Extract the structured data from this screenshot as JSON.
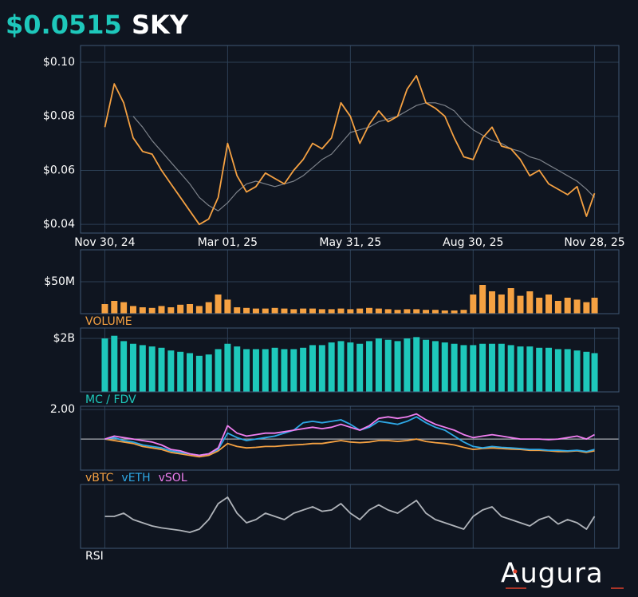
{
  "header": {
    "price": "$0.0515",
    "symbol": "SKY"
  },
  "logo": "Augura",
  "chart_data": [
    {
      "type": "line",
      "x": [
        "2024-11-30",
        "2024-12-07",
        "2024-12-14",
        "2024-12-21",
        "2024-12-28",
        "2025-01-04",
        "2025-01-11",
        "2025-01-18",
        "2025-01-25",
        "2025-02-01",
        "2025-02-08",
        "2025-02-15",
        "2025-02-22",
        "2025-03-01",
        "2025-03-08",
        "2025-03-15",
        "2025-03-22",
        "2025-03-29",
        "2025-04-05",
        "2025-04-12",
        "2025-04-19",
        "2025-04-26",
        "2025-05-03",
        "2025-05-10",
        "2025-05-17",
        "2025-05-24",
        "2025-05-31",
        "2025-06-07",
        "2025-06-14",
        "2025-06-21",
        "2025-06-28",
        "2025-07-05",
        "2025-07-12",
        "2025-07-19",
        "2025-07-26",
        "2025-08-02",
        "2025-08-09",
        "2025-08-16",
        "2025-08-23",
        "2025-08-30",
        "2025-09-06",
        "2025-09-13",
        "2025-09-20",
        "2025-09-27",
        "2025-10-04",
        "2025-10-11",
        "2025-10-18",
        "2025-10-25",
        "2025-11-01",
        "2025-11-08",
        "2025-11-15",
        "2025-11-22",
        "2025-11-28"
      ],
      "xlim": [
        "2024-11-12",
        "2025-12-16"
      ],
      "xticks": [
        {
          "value": "2024-11-30",
          "label": "Nov 30, 24"
        },
        {
          "value": "2025-03-01",
          "label": "Mar 01, 25"
        },
        {
          "value": "2025-05-31",
          "label": "May 31, 25"
        },
        {
          "value": "2025-08-30",
          "label": "Aug 30, 25"
        },
        {
          "value": "2025-11-28",
          "label": "Nov 28, 25"
        }
      ],
      "ylim": [
        0.0368,
        0.1062
      ],
      "yticks": [
        {
          "value": 0.04,
          "label": "$0.04"
        },
        {
          "value": 0.06,
          "label": "$0.06"
        },
        {
          "value": 0.08,
          "label": "$0.08"
        },
        {
          "value": 0.1,
          "label": "$0.10"
        }
      ],
      "grid": true,
      "series": [
        {
          "color": "#7d828a",
          "values": [
            null,
            null,
            null,
            0.08,
            0.076,
            0.071,
            0.067,
            0.063,
            0.059,
            0.055,
            0.05,
            0.047,
            0.045,
            0.048,
            0.052,
            0.055,
            0.056,
            0.055,
            0.054,
            0.055,
            0.056,
            0.058,
            0.061,
            0.064,
            0.066,
            0.07,
            0.074,
            0.075,
            0.076,
            0.078,
            0.079,
            0.08,
            0.082,
            0.084,
            0.085,
            0.085,
            0.084,
            0.082,
            0.078,
            0.075,
            0.073,
            0.071,
            0.07,
            0.068,
            0.067,
            0.065,
            0.064,
            0.062,
            0.06,
            0.058,
            0.056,
            0.053,
            0.05
          ]
        },
        {
          "color": "#f5a142",
          "values": [
            0.076,
            0.092,
            0.085,
            0.072,
            0.067,
            0.066,
            0.06,
            0.055,
            0.05,
            0.045,
            0.04,
            0.042,
            0.05,
            0.07,
            0.058,
            0.052,
            0.054,
            0.059,
            0.057,
            0.055,
            0.06,
            0.064,
            0.07,
            0.068,
            0.072,
            0.085,
            0.08,
            0.07,
            0.077,
            0.082,
            0.078,
            0.08,
            0.09,
            0.095,
            0.085,
            0.083,
            0.08,
            0.072,
            0.065,
            0.064,
            0.072,
            0.076,
            0.069,
            0.068,
            0.064,
            0.058,
            0.06,
            0.055,
            0.053,
            0.051,
            0.054,
            0.043,
            0.0515
          ]
        }
      ]
    },
    {
      "type": "bar",
      "title": "VOLUME",
      "color": "#f5a142",
      "x": [
        "2024-11-30",
        "2024-12-07",
        "2024-12-14",
        "2024-12-21",
        "2024-12-28",
        "2025-01-04",
        "2025-01-11",
        "2025-01-18",
        "2025-01-25",
        "2025-02-01",
        "2025-02-08",
        "2025-02-15",
        "2025-02-22",
        "2025-03-01",
        "2025-03-08",
        "2025-03-15",
        "2025-03-22",
        "2025-03-29",
        "2025-04-05",
        "2025-04-12",
        "2025-04-19",
        "2025-04-26",
        "2025-05-03",
        "2025-05-10",
        "2025-05-17",
        "2025-05-24",
        "2025-05-31",
        "2025-06-07",
        "2025-06-14",
        "2025-06-21",
        "2025-06-28",
        "2025-07-05",
        "2025-07-12",
        "2025-07-19",
        "2025-07-26",
        "2025-08-02",
        "2025-08-09",
        "2025-08-16",
        "2025-08-23",
        "2025-08-30",
        "2025-09-06",
        "2025-09-13",
        "2025-09-20",
        "2025-09-27",
        "2025-10-04",
        "2025-10-11",
        "2025-10-18",
        "2025-10-25",
        "2025-11-01",
        "2025-11-08",
        "2025-11-15",
        "2025-11-22",
        "2025-11-28"
      ],
      "xlim": [
        "2024-11-12",
        "2025-12-16"
      ],
      "ylim": [
        0,
        100000000
      ],
      "yticks": [
        {
          "value": 50000000,
          "label": "$50M"
        }
      ],
      "values": [
        15000000,
        20000000,
        18000000,
        12000000,
        10000000,
        9000000,
        12000000,
        10000000,
        14000000,
        15000000,
        12000000,
        18000000,
        30000000,
        22000000,
        10000000,
        9000000,
        8000000,
        8000000,
        9000000,
        8000000,
        7000000,
        8000000,
        8000000,
        7000000,
        7000000,
        8000000,
        7000000,
        8000000,
        9000000,
        8000000,
        7000000,
        6000000,
        7000000,
        7000000,
        6000000,
        6000000,
        5000000,
        5000000,
        6000000,
        30000000,
        45000000,
        35000000,
        30000000,
        40000000,
        28000000,
        35000000,
        25000000,
        30000000,
        20000000,
        25000000,
        22000000,
        18000000,
        25000000
      ]
    },
    {
      "type": "bar",
      "title": "MC / FDV",
      "color": "#1ec8bb",
      "x": [
        "2024-11-30",
        "2024-12-07",
        "2024-12-14",
        "2024-12-21",
        "2024-12-28",
        "2025-01-04",
        "2025-01-11",
        "2025-01-18",
        "2025-01-25",
        "2025-02-01",
        "2025-02-08",
        "2025-02-15",
        "2025-02-22",
        "2025-03-01",
        "2025-03-08",
        "2025-03-15",
        "2025-03-22",
        "2025-03-29",
        "2025-04-05",
        "2025-04-12",
        "2025-04-19",
        "2025-04-26",
        "2025-05-03",
        "2025-05-10",
        "2025-05-17",
        "2025-05-24",
        "2025-05-31",
        "2025-06-07",
        "2025-06-14",
        "2025-06-21",
        "2025-06-28",
        "2025-07-05",
        "2025-07-12",
        "2025-07-19",
        "2025-07-26",
        "2025-08-02",
        "2025-08-09",
        "2025-08-16",
        "2025-08-23",
        "2025-08-30",
        "2025-09-06",
        "2025-09-13",
        "2025-09-20",
        "2025-09-27",
        "2025-10-04",
        "2025-10-11",
        "2025-10-18",
        "2025-10-25",
        "2025-11-01",
        "2025-11-08",
        "2025-11-15",
        "2025-11-22",
        "2025-11-28"
      ],
      "xlim": [
        "2024-11-12",
        "2025-12-16"
      ],
      "ylim": [
        0,
        2390000000
      ],
      "yticks": [
        {
          "value": 2000000000,
          "label": "$2B"
        }
      ],
      "values": [
        2000000000,
        2100000000,
        1900000000,
        1800000000,
        1750000000,
        1700000000,
        1650000000,
        1550000000,
        1500000000,
        1450000000,
        1350000000,
        1400000000,
        1600000000,
        1800000000,
        1700000000,
        1600000000,
        1600000000,
        1600000000,
        1650000000,
        1600000000,
        1600000000,
        1650000000,
        1750000000,
        1750000000,
        1850000000,
        1900000000,
        1850000000,
        1800000000,
        1900000000,
        2000000000,
        1950000000,
        1900000000,
        2000000000,
        2050000000,
        1950000000,
        1900000000,
        1850000000,
        1800000000,
        1750000000,
        1750000000,
        1800000000,
        1800000000,
        1800000000,
        1750000000,
        1700000000,
        1700000000,
        1650000000,
        1650000000,
        1600000000,
        1600000000,
        1550000000,
        1500000000,
        1450000000
      ]
    },
    {
      "type": "line",
      "x": [
        "2024-11-30",
        "2024-12-07",
        "2024-12-14",
        "2024-12-21",
        "2024-12-28",
        "2025-01-04",
        "2025-01-11",
        "2025-01-18",
        "2025-01-25",
        "2025-02-01",
        "2025-02-08",
        "2025-02-15",
        "2025-02-22",
        "2025-03-01",
        "2025-03-08",
        "2025-03-15",
        "2025-03-22",
        "2025-03-29",
        "2025-04-05",
        "2025-04-12",
        "2025-04-19",
        "2025-04-26",
        "2025-05-03",
        "2025-05-10",
        "2025-05-17",
        "2025-05-24",
        "2025-05-31",
        "2025-06-07",
        "2025-06-14",
        "2025-06-21",
        "2025-06-28",
        "2025-07-05",
        "2025-07-12",
        "2025-07-19",
        "2025-07-26",
        "2025-08-02",
        "2025-08-09",
        "2025-08-16",
        "2025-08-23",
        "2025-08-30",
        "2025-09-06",
        "2025-09-13",
        "2025-09-20",
        "2025-09-27",
        "2025-10-04",
        "2025-10-11",
        "2025-10-18",
        "2025-10-25",
        "2025-11-01",
        "2025-11-08",
        "2025-11-15",
        "2025-11-22",
        "2025-11-28"
      ],
      "xlim": [
        "2024-11-12",
        "2025-12-16"
      ],
      "ylim": [
        -0.05,
        2.11
      ],
      "yticks": [
        {
          "value": 2,
          "label": "2.00"
        }
      ],
      "baseline": 1,
      "series": [
        {
          "name": "vBTC",
          "color": "#f5a142",
          "values": [
            1.0,
            0.95,
            0.9,
            0.85,
            0.75,
            0.7,
            0.65,
            0.55,
            0.5,
            0.45,
            0.4,
            0.45,
            0.6,
            0.85,
            0.75,
            0.7,
            0.72,
            0.75,
            0.75,
            0.78,
            0.8,
            0.82,
            0.85,
            0.85,
            0.9,
            0.95,
            0.9,
            0.88,
            0.9,
            0.95,
            0.95,
            0.92,
            0.95,
            1.0,
            0.92,
            0.88,
            0.85,
            0.8,
            0.72,
            0.65,
            0.68,
            0.7,
            0.68,
            0.66,
            0.65,
            0.62,
            0.62,
            0.6,
            0.58,
            0.58,
            0.6,
            0.55,
            0.6
          ]
        },
        {
          "name": "vETH",
          "color": "#2ea8e6",
          "values": [
            1.0,
            1.05,
            0.95,
            0.9,
            0.8,
            0.75,
            0.7,
            0.6,
            0.55,
            0.5,
            0.45,
            0.5,
            0.65,
            1.2,
            1.05,
            0.95,
            1.0,
            1.05,
            1.1,
            1.2,
            1.3,
            1.55,
            1.6,
            1.55,
            1.6,
            1.65,
            1.5,
            1.3,
            1.4,
            1.6,
            1.55,
            1.5,
            1.6,
            1.75,
            1.55,
            1.4,
            1.3,
            1.1,
            0.9,
            0.75,
            0.7,
            0.75,
            0.72,
            0.7,
            0.68,
            0.65,
            0.65,
            0.62,
            0.62,
            0.6,
            0.62,
            0.58,
            0.65
          ]
        },
        {
          "name": "vSOL",
          "color": "#f07ff0",
          "values": [
            1.0,
            1.1,
            1.05,
            1.0,
            0.95,
            0.9,
            0.8,
            0.65,
            0.6,
            0.5,
            0.45,
            0.5,
            0.7,
            1.45,
            1.2,
            1.1,
            1.15,
            1.2,
            1.2,
            1.25,
            1.3,
            1.35,
            1.4,
            1.35,
            1.4,
            1.5,
            1.4,
            1.3,
            1.45,
            1.7,
            1.75,
            1.7,
            1.75,
            1.85,
            1.65,
            1.5,
            1.4,
            1.3,
            1.15,
            1.05,
            1.1,
            1.15,
            1.1,
            1.05,
            1.0,
            1.0,
            1.0,
            0.98,
            1.0,
            1.05,
            1.1,
            1.0,
            1.15
          ]
        }
      ]
    },
    {
      "type": "line",
      "title": "RSI",
      "x": [
        "2024-11-30",
        "2024-12-07",
        "2024-12-14",
        "2024-12-21",
        "2024-12-28",
        "2025-01-04",
        "2025-01-11",
        "2025-01-18",
        "2025-01-25",
        "2025-02-01",
        "2025-02-08",
        "2025-02-15",
        "2025-02-22",
        "2025-03-01",
        "2025-03-08",
        "2025-03-15",
        "2025-03-22",
        "2025-03-29",
        "2025-04-05",
        "2025-04-12",
        "2025-04-19",
        "2025-04-26",
        "2025-05-03",
        "2025-05-10",
        "2025-05-17",
        "2025-05-24",
        "2025-05-31",
        "2025-06-07",
        "2025-06-14",
        "2025-06-21",
        "2025-06-28",
        "2025-07-05",
        "2025-07-12",
        "2025-07-19",
        "2025-07-26",
        "2025-08-02",
        "2025-08-09",
        "2025-08-16",
        "2025-08-23",
        "2025-08-30",
        "2025-09-06",
        "2025-09-13",
        "2025-09-20",
        "2025-09-27",
        "2025-10-04",
        "2025-10-11",
        "2025-10-18",
        "2025-10-25",
        "2025-11-01",
        "2025-11-08",
        "2025-11-15",
        "2025-11-22",
        "2025-11-28"
      ],
      "xlim": [
        "2024-11-12",
        "2025-12-16"
      ],
      "ylim": [
        0,
        100
      ],
      "series": [
        {
          "color": "#b0b4ba",
          "values": [
            50,
            50,
            55,
            45,
            40,
            35,
            32,
            30,
            28,
            25,
            30,
            45,
            70,
            80,
            55,
            40,
            45,
            55,
            50,
            45,
            55,
            60,
            65,
            58,
            60,
            70,
            55,
            45,
            60,
            68,
            60,
            55,
            65,
            75,
            55,
            45,
            40,
            35,
            30,
            50,
            60,
            65,
            50,
            45,
            40,
            35,
            45,
            50,
            38,
            45,
            40,
            30,
            50
          ]
        }
      ]
    }
  ]
}
